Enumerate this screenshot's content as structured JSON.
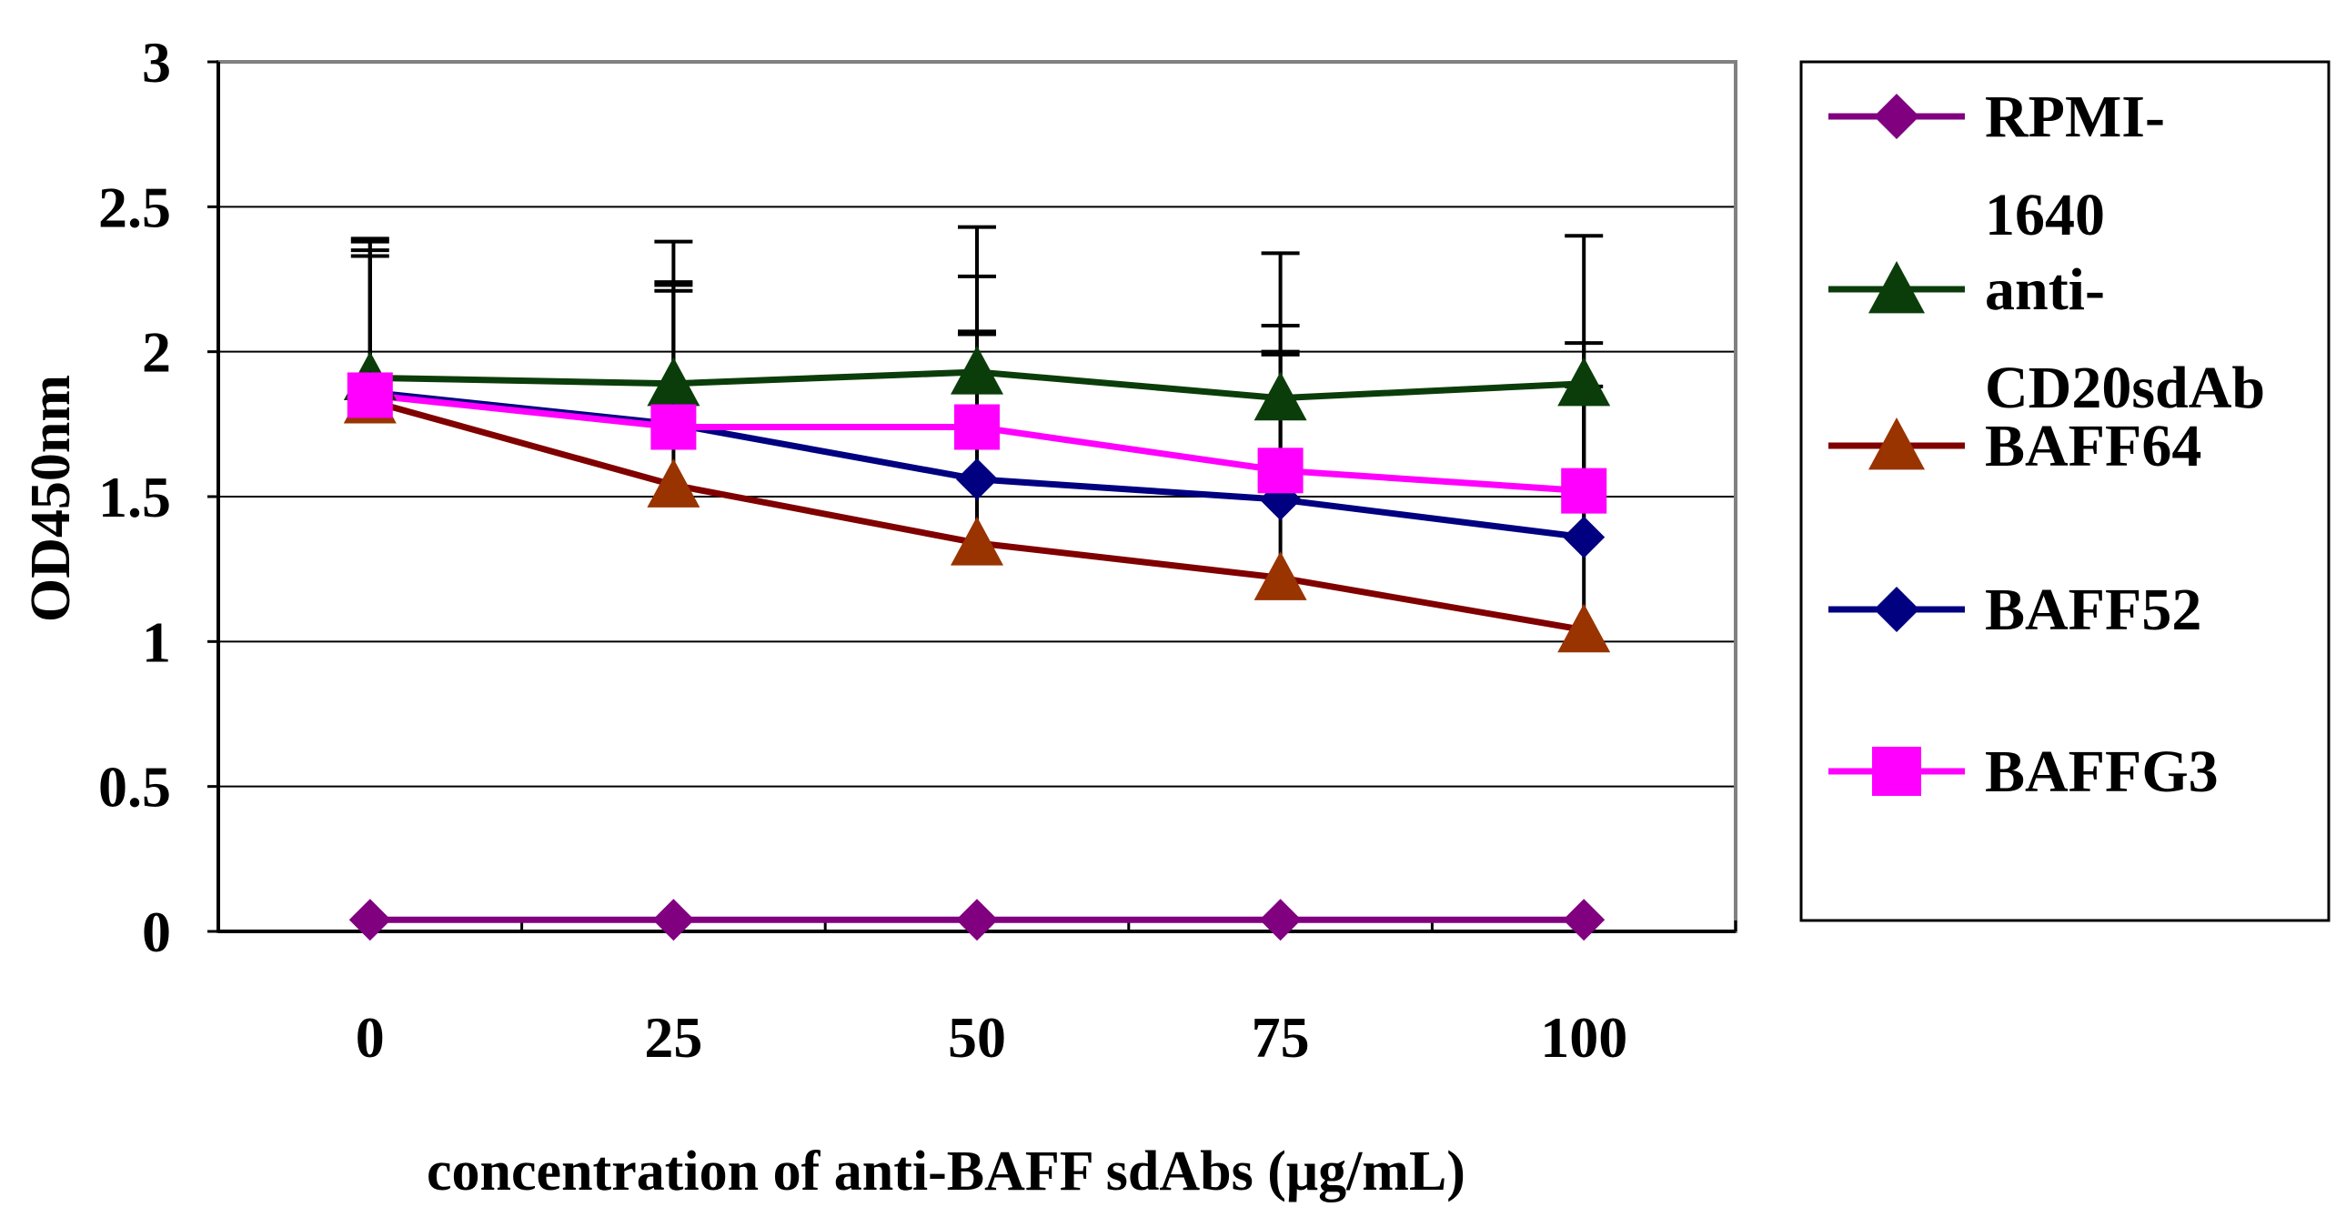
{
  "chart_data": {
    "type": "line",
    "title": "",
    "xlabel": "concentration of anti-BAFF sdAbs (μg/mL)",
    "ylabel": "OD450nm",
    "categories": [
      "0",
      "25",
      "50",
      "75",
      "100"
    ],
    "ylim": [
      0,
      3
    ],
    "yticks": [
      "0",
      "0.5",
      "1",
      "1.5",
      "2",
      "2.5",
      "3"
    ],
    "grid": true,
    "legend_position": "right",
    "series": [
      {
        "name": "RPMI-1640",
        "legend_lines": [
          "RPMI-",
          "1640"
        ],
        "color": "#800080",
        "marker": "diamond",
        "values": [
          0.04,
          0.04,
          0.04,
          0.04,
          0.04
        ],
        "errors": [
          0,
          0,
          0,
          0,
          0
        ]
      },
      {
        "name": "anti-CD20sdAb",
        "legend_lines": [
          "anti-",
          "CD20sdAb"
        ],
        "color": "#0b3d0b",
        "marker": "triangle",
        "values": [
          1.91,
          1.89,
          1.93,
          1.84,
          1.89
        ],
        "errors": [
          0.48,
          0.49,
          0.5,
          0.5,
          0.51
        ]
      },
      {
        "name": "BAFF64",
        "legend_lines": [
          "BAFF64"
        ],
        "color": "#800000",
        "marker_color": "#993300",
        "marker": "triangle",
        "values": [
          1.83,
          1.54,
          1.34,
          1.22,
          1.04
        ],
        "errors": [
          0.52,
          0.7,
          0.73,
          0.77,
          0.79
        ]
      },
      {
        "name": "BAFF52",
        "legend_lines": [
          "BAFF52"
        ],
        "color": "#000080",
        "marker": "diamond",
        "values": [
          1.86,
          1.75,
          1.56,
          1.49,
          1.36
        ],
        "errors": [
          0.47,
          0.48,
          0.5,
          0.51,
          0.52
        ]
      },
      {
        "name": "BAFFG3",
        "legend_lines": [
          "BAFFG3"
        ],
        "color": "#ff00ff",
        "marker": "square",
        "values": [
          1.85,
          1.74,
          1.74,
          1.59,
          1.52
        ],
        "errors": [
          0.53,
          0.47,
          0.52,
          0.5,
          0.51
        ]
      }
    ]
  }
}
